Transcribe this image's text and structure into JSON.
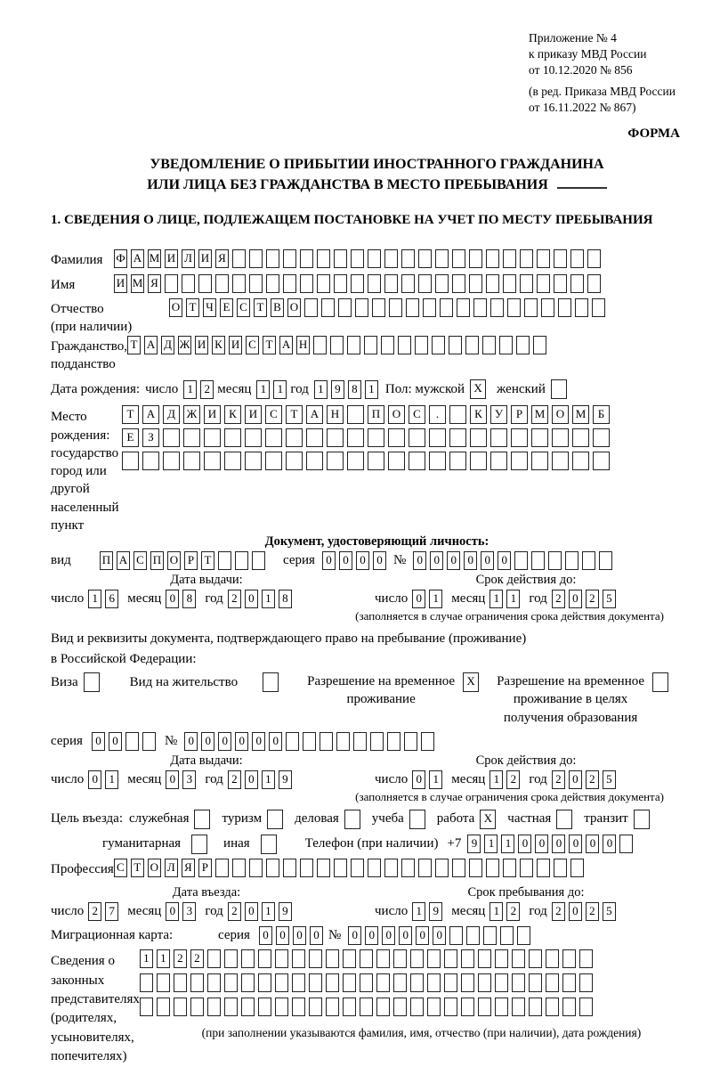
{
  "colors": {
    "text": "#000000",
    "box_border": "#222222",
    "background": "#ffffff"
  },
  "header": {
    "appendix_lines": [
      "Приложение № 4",
      "к приказу МВД России",
      "от 10.12.2020 № 856"
    ],
    "edition_lines": [
      "(в ред. Приказа МВД России",
      "от 16.11.2022 № 867)"
    ],
    "form_label": "ФОРМА"
  },
  "title": {
    "line1": "УВЕДОМЛЕНИЕ О ПРИБЫТИИ ИНОСТРАННОГО ГРАЖДАНИНА",
    "line2": "ИЛИ ЛИЦА БЕЗ ГРАЖДАНСТВА В МЕСТО ПРЕБЫВАНИЯ"
  },
  "section1": {
    "heading": "1. СВЕДЕНИЯ О ЛИЦЕ, ПОДЛЕЖАЩЕМ ПОСТАНОВКЕ НА УЧЕТ ПО МЕСТУ ПРЕБЫВАНИЯ"
  },
  "person": {
    "surname": {
      "label": "Фамилия",
      "cells": {
        "text": "ФАМИЛИЯ",
        "total": 29
      }
    },
    "name": {
      "label": "Имя",
      "cells": {
        "text": "ИМЯ",
        "total": 29
      }
    },
    "patronymic": {
      "label_line1": "Отчество",
      "label_line2": "(при наличии)",
      "cells": {
        "text": "ОТЧЕСТВО",
        "total": 26
      }
    },
    "citizenship": {
      "label_line1": "Гражданство,",
      "label_line2": "подданство",
      "cells": {
        "text": "ТАДЖИКИСТАН",
        "total": 25
      }
    },
    "birth_date": {
      "label": "Дата рождения:",
      "day_label": "число",
      "day": {
        "text": "12",
        "total": 2
      },
      "month_label": "месяц",
      "month": {
        "text": "11",
        "total": 2
      },
      "year_label": "год",
      "year": {
        "text": "1981",
        "total": 4
      },
      "sex_label": "Пол: мужской",
      "male_box": {
        "text": "X",
        "total": 1
      },
      "female_label": "женский",
      "female_box": {
        "text": "",
        "total": 1
      }
    },
    "birth_place": {
      "label_line1": "Место рождения:",
      "label_line2": "государство",
      "label_line3": "город или другой",
      "label_line4": "населенный пункт",
      "row1": {
        "text": "ТАДЖИКИСТАН ПОС. КУРМОМБ",
        "total": 24
      },
      "row2": {
        "text": "ЕЗ",
        "total": 24
      },
      "row3": {
        "text": "",
        "total": 24
      }
    }
  },
  "identity_doc": {
    "heading": "Документ, удостоверяющий личность:",
    "kind_label": "вид",
    "kind": {
      "text": "ПАСПОРТ",
      "total": 10
    },
    "series_label": "серия",
    "series": {
      "text": "0000",
      "total": 4
    },
    "number_label": "№",
    "number": {
      "text": "000000",
      "total": 12
    },
    "issue": {
      "heading": "Дата выдачи:",
      "day_label": "число",
      "day": {
        "text": "16",
        "total": 2
      },
      "month_label": "месяц",
      "month": {
        "text": "08",
        "total": 2
      },
      "year_label": "год",
      "year": {
        "text": "2018",
        "total": 4
      }
    },
    "valid": {
      "heading": "Срок действия до:",
      "day_label": "число",
      "day": {
        "text": "01",
        "total": 2
      },
      "month_label": "месяц",
      "month": {
        "text": "11",
        "total": 2
      },
      "year_label": "год",
      "year": {
        "text": "2025",
        "total": 4
      }
    },
    "note": "(заполняется в случае ограничения срока действия документа)"
  },
  "stay_doc": {
    "intro_line1": "Вид и реквизиты документа, подтверждающего право на пребывание (проживание)",
    "intro_line2": "в Российской Федерации:",
    "visa_label": "Виза",
    "visa_box": {
      "text": "",
      "total": 1
    },
    "residence_label": "Вид на жительство",
    "residence_box": {
      "text": "",
      "total": 1
    },
    "temp_label_line1": "Разрешение на временное",
    "temp_label_line2": "проживание",
    "temp_box": {
      "text": "X",
      "total": 1
    },
    "edu_label_line1": "Разрешение на временное",
    "edu_label_line2": "проживание в целях",
    "edu_label_line3": "получения образования",
    "edu_box": {
      "text": "",
      "total": 1
    },
    "series_label": "серия",
    "series": {
      "text": "00",
      "total": 4
    },
    "number_label": "№",
    "number": {
      "text": "000000",
      "total": 15
    },
    "issue": {
      "heading": "Дата выдачи:",
      "day_label": "число",
      "day": {
        "text": "01",
        "total": 2
      },
      "month_label": "месяц",
      "month": {
        "text": "03",
        "total": 2
      },
      "year_label": "год",
      "year": {
        "text": "2019",
        "total": 4
      }
    },
    "valid": {
      "heading": "Срок действия до:",
      "day_label": "число",
      "day": {
        "text": "01",
        "total": 2
      },
      "month_label": "месяц",
      "month": {
        "text": "12",
        "total": 2
      },
      "year_label": "год",
      "year": {
        "text": "2025",
        "total": 4
      }
    },
    "note": "(заполняется в случае ограничения срока действия документа)"
  },
  "purpose": {
    "label": "Цель въезда:",
    "options_row1": [
      {
        "label": "служебная",
        "checked": ""
      },
      {
        "label": "туризм",
        "checked": ""
      },
      {
        "label": "деловая",
        "checked": ""
      },
      {
        "label": "учеба",
        "checked": ""
      },
      {
        "label": "работа",
        "checked": "X"
      },
      {
        "label": "частная",
        "checked": ""
      },
      {
        "label": "транзит",
        "checked": ""
      }
    ],
    "options_row2": [
      {
        "label": "гуманитарная",
        "checked": ""
      },
      {
        "label": "иная",
        "checked": ""
      }
    ],
    "phone_label": "Телефон (при наличии)",
    "phone_prefix": "+7",
    "phone": {
      "text": "911000000",
      "total": 10
    }
  },
  "profession": {
    "label": "Профессия",
    "cells": {
      "text": "СТОЛЯР",
      "total": 28
    }
  },
  "entry": {
    "issue": {
      "heading": "Дата въезда:",
      "day_label": "число",
      "day": {
        "text": "27",
        "total": 2
      },
      "month_label": "месяц",
      "month": {
        "text": "03",
        "total": 2
      },
      "year_label": "год",
      "year": {
        "text": "2019",
        "total": 4
      }
    },
    "valid": {
      "heading": "Срок пребывания до:",
      "day_label": "число",
      "day": {
        "text": "19",
        "total": 2
      },
      "month_label": "месяц",
      "month": {
        "text": "12",
        "total": 2
      },
      "year_label": "год",
      "year": {
        "text": "2025",
        "total": 4
      }
    }
  },
  "migration_card": {
    "label": "Миграционная карта:",
    "series_label": "серия",
    "series": {
      "text": "0000",
      "total": 4
    },
    "number_label": "№",
    "number": {
      "text": "000000",
      "total": 11
    }
  },
  "legal_reps": {
    "label_lines": [
      "Сведения о",
      "законных",
      "представителях",
      "(родителях,",
      "усыновителях,",
      "попечителях)"
    ],
    "row1": {
      "text": "1122",
      "total": 27
    },
    "row2": {
      "text": "",
      "total": 27
    },
    "row3": {
      "text": "",
      "total": 27
    },
    "caption": "(при заполнении указываются фамилия, имя, отчество (при наличии), дата рождения)"
  }
}
